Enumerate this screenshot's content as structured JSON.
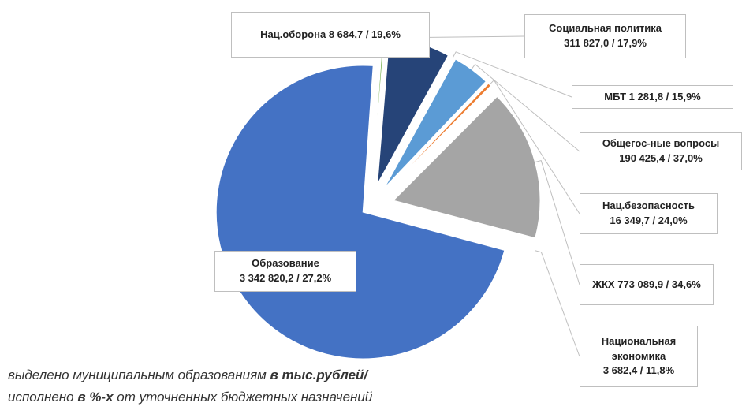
{
  "chart_data": {
    "type": "pie",
    "categories": [
      "Нац.оборона",
      "Социальная политика",
      "МБТ",
      "Общегос-ные вопросы",
      "Нац.безопасность",
      "ЖКХ",
      "Национальная экономика",
      "Образование"
    ],
    "values": [
      8684.7,
      311827.0,
      1281.8,
      190425.4,
      16349.7,
      773089.9,
      3682.4,
      3342820.2
    ],
    "value_labels": [
      "8 684,7 / 19,6%",
      "311 827,0 / 17,9%",
      "1 281,8 / 15,9%",
      "190 425,4 / 37,0%",
      "16 349,7 / 24,0%",
      "773 089,9 / 34,6%",
      "3 682,4 / 11,8%",
      "3 342 820,2 / 27,2%"
    ],
    "colors": [
      "#70ad47",
      "#264478",
      "#255e91",
      "#5b9bd5",
      "#ed7d31",
      "#a5a5a5",
      "#ffc000",
      "#4472c4"
    ],
    "note": [
      [
        {
          "text": "выделено муниципальным образованиям ",
          "bold": false
        },
        {
          "text": "в тыс.рублей/",
          "bold": true
        }
      ],
      [
        {
          "text": "исполнено ",
          "bold": false
        },
        {
          "text": "в %-х",
          "bold": true
        },
        {
          "text": " от уточненных бюджетных назначений",
          "bold": false
        }
      ]
    ]
  }
}
